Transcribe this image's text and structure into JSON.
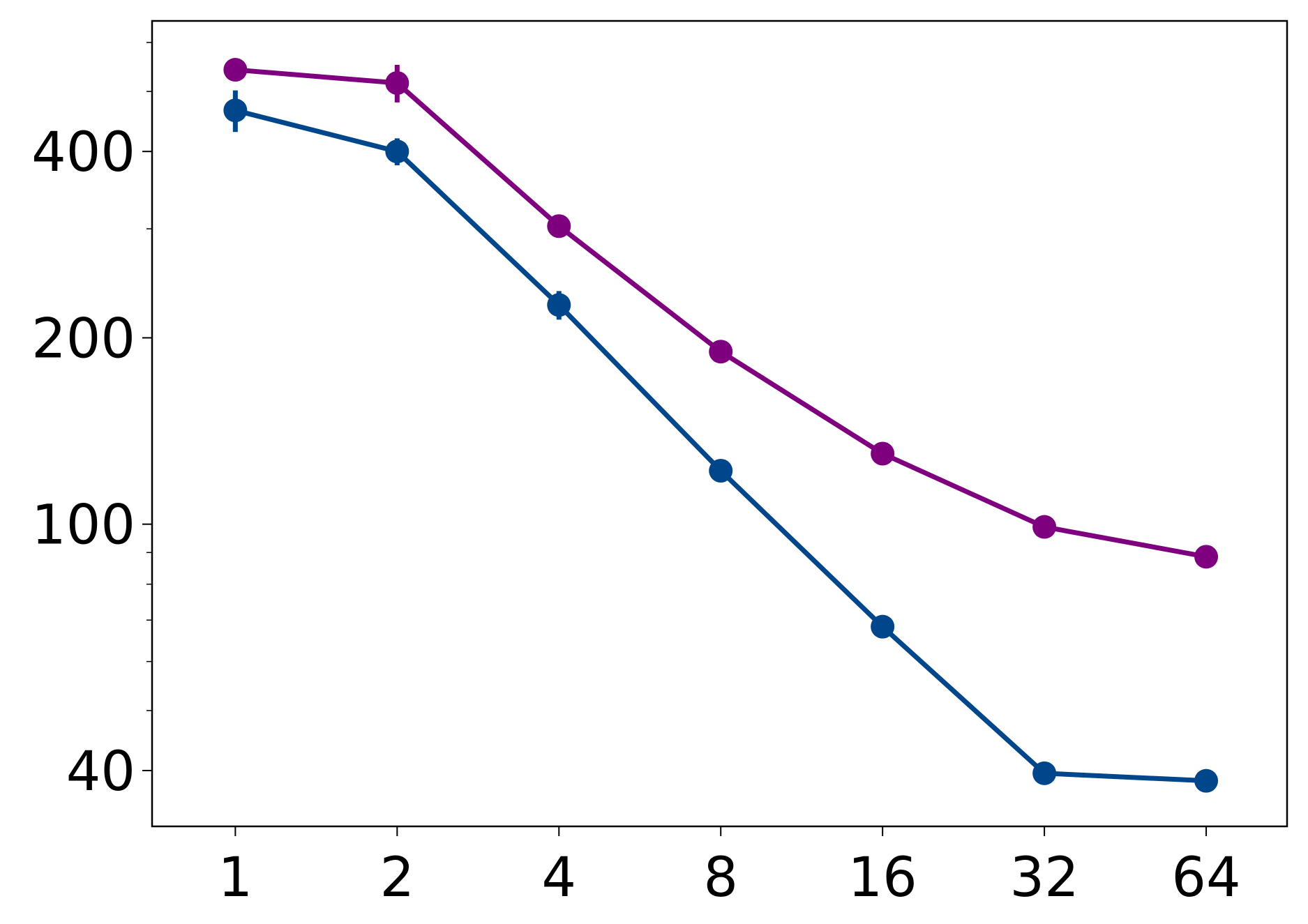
{
  "chart_data": {
    "type": "line",
    "x": [
      1,
      2,
      4,
      8,
      16,
      32,
      64
    ],
    "xscale": "log2",
    "yscale": "log",
    "xlim": [
      0.7,
      90.5
    ],
    "xticks": [
      1,
      2,
      4,
      8,
      16,
      32,
      64
    ],
    "ylim": [
      32.5,
      650
    ],
    "yticks": [
      40,
      100,
      200,
      400
    ],
    "yminor_ticks": [
      50,
      60,
      70,
      80,
      90,
      300,
      500,
      600
    ],
    "grid": false,
    "series": [
      {
        "color": "#00468b",
        "values": [
          466,
          400,
          226,
          122,
          68.3,
          39.6,
          38.5
        ],
        "errors": [
          36,
          20,
          12,
          5,
          2.5,
          1.2,
          1.2
        ]
      },
      {
        "color": "#7f007f",
        "values": [
          542,
          516,
          303,
          190,
          130,
          99,
          88.6
        ],
        "errors": [
          16,
          36,
          10,
          6,
          5,
          3,
          1
        ]
      }
    ]
  }
}
